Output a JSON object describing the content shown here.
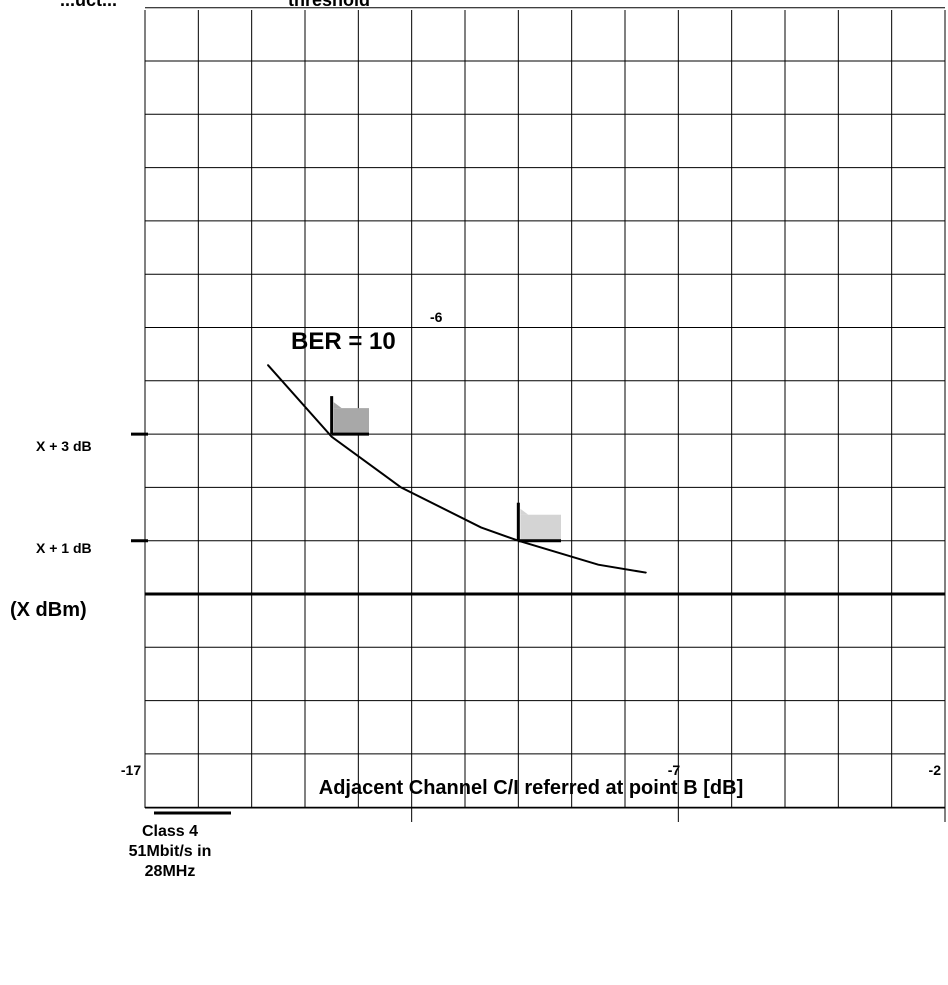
{
  "chart_data": {
    "type": "line",
    "title_fragment": "threshold",
    "top_fragment": "...uct...",
    "xlabel": "Adjacent Channel C/I referred at point B [dB]",
    "x_tick_labels": [
      "-17",
      "-7",
      "-2"
    ],
    "y_tick_labels": [
      "X + 3 dB",
      "X + 1 dB",
      "(X dBm)"
    ],
    "annotation": {
      "base": "BER = 10",
      "exponent": "-6"
    },
    "xlim": [
      -17,
      -2
    ],
    "ylim": [
      -4,
      11
    ],
    "grid": true,
    "series": [
      {
        "x": [
          -14.7,
          -13.5,
          -12.2,
          -10.7,
          -10.0,
          -8.5,
          -7.6
        ],
        "y": [
          4.3,
          2.95,
          2.0,
          1.25,
          1.0,
          0.55,
          0.4
        ]
      }
    ],
    "masks": [
      {
        "shade": "#a8a8a8",
        "x": [
          -13.5,
          -12.8
        ],
        "y": [
          3.0,
          3.6
        ]
      },
      {
        "shade": "#d4d4d4",
        "x": [
          -10.0,
          -9.2
        ],
        "y": [
          1.0,
          1.6
        ]
      }
    ],
    "legend": {
      "lines": [
        "Class 4",
        "51Mbit/s in",
        "28MHz"
      ]
    }
  }
}
